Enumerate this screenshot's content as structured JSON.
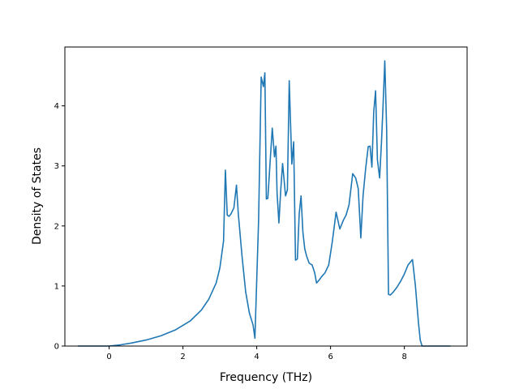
{
  "chart_data": {
    "type": "line",
    "title": "",
    "xlabel": "Frequency (THz)",
    "ylabel": "Density of States",
    "xlim": [
      -1.2,
      9.7
    ],
    "ylim": [
      0,
      4.98
    ],
    "xticks": [
      0,
      2,
      4,
      6,
      8
    ],
    "yticks": [
      0,
      1,
      2,
      3,
      4
    ],
    "grid": false,
    "legend": "none",
    "series": [
      {
        "color": "#1f77b4",
        "x": [
          -0.85,
          -0.5,
          0.0,
          0.3,
          0.6,
          1.0,
          1.4,
          1.8,
          2.2,
          2.5,
          2.7,
          2.9,
          3.0,
          3.1,
          3.15,
          3.2,
          3.25,
          3.3,
          3.38,
          3.45,
          3.5,
          3.6,
          3.7,
          3.8,
          3.9,
          3.95,
          4.05,
          4.12,
          4.18,
          4.22,
          4.26,
          4.3,
          4.35,
          4.42,
          4.48,
          4.52,
          4.55,
          4.6,
          4.65,
          4.7,
          4.78,
          4.83,
          4.88,
          4.95,
          5.0,
          5.05,
          5.1,
          5.15,
          5.2,
          5.25,
          5.3,
          5.35,
          5.42,
          5.5,
          5.57,
          5.62,
          5.68,
          5.75,
          5.85,
          5.95,
          6.05,
          6.15,
          6.25,
          6.35,
          6.42,
          6.5,
          6.6,
          6.68,
          6.75,
          6.82,
          6.88,
          6.95,
          7.02,
          7.07,
          7.12,
          7.17,
          7.22,
          7.27,
          7.33,
          7.38,
          7.42,
          7.47,
          7.52,
          7.57,
          7.62,
          7.7,
          7.8,
          7.9,
          8.0,
          8.1,
          8.22,
          8.3,
          8.38,
          8.43,
          8.48,
          9.25
        ],
        "y": [
          0.0,
          0.0,
          0.0,
          0.02,
          0.05,
          0.1,
          0.17,
          0.27,
          0.42,
          0.6,
          0.78,
          1.05,
          1.3,
          1.75,
          2.93,
          2.18,
          2.16,
          2.2,
          2.3,
          2.68,
          2.2,
          1.5,
          0.9,
          0.55,
          0.35,
          0.13,
          2.1,
          4.48,
          4.32,
          4.55,
          2.45,
          2.46,
          2.95,
          3.63,
          3.15,
          3.33,
          2.55,
          2.05,
          2.6,
          3.04,
          2.5,
          2.6,
          4.42,
          3.03,
          3.4,
          1.43,
          1.45,
          2.2,
          2.5,
          1.9,
          1.62,
          1.5,
          1.38,
          1.35,
          1.22,
          1.05,
          1.09,
          1.15,
          1.22,
          1.35,
          1.75,
          2.23,
          1.95,
          2.1,
          2.18,
          2.35,
          2.87,
          2.8,
          2.62,
          1.8,
          2.5,
          2.95,
          3.32,
          3.33,
          2.98,
          3.9,
          4.25,
          3.1,
          2.8,
          3.4,
          3.97,
          4.75,
          3.6,
          0.86,
          0.85,
          0.9,
          0.98,
          1.08,
          1.2,
          1.35,
          1.44,
          1.0,
          0.4,
          0.1,
          0.0,
          0.0
        ]
      }
    ]
  }
}
